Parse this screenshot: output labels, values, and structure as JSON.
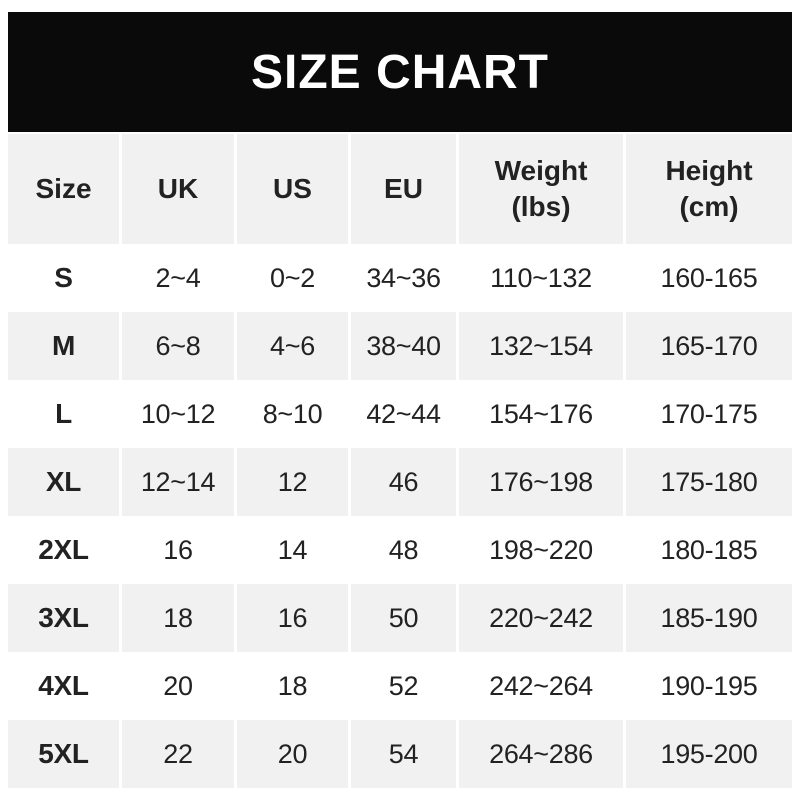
{
  "banner": {
    "title": "SIZE CHART",
    "bg_color": "#0a0a0a",
    "text_color": "#ffffff"
  },
  "table": {
    "shaded_row_color": "#f1f1f1",
    "text_color": "#222222",
    "headers": [
      {
        "line1": "Size"
      },
      {
        "line1": "UK"
      },
      {
        "line1": "US"
      },
      {
        "line1": "EU"
      },
      {
        "line1": "Weight",
        "line2": "(lbs)"
      },
      {
        "line1": "Height",
        "line2": "(cm)"
      }
    ]
  },
  "chart_data": {
    "type": "table",
    "title": "SIZE CHART",
    "columns": [
      "Size",
      "UK",
      "US",
      "EU",
      "Weight (lbs)",
      "Height (cm)"
    ],
    "rows": [
      [
        "S",
        "2~4",
        "0~2",
        "34~36",
        "110~132",
        "160-165"
      ],
      [
        "M",
        "6~8",
        "4~6",
        "38~40",
        "132~154",
        "165-170"
      ],
      [
        "L",
        "10~12",
        "8~10",
        "42~44",
        "154~176",
        "170-175"
      ],
      [
        "XL",
        "12~14",
        "12",
        "46",
        "176~198",
        "175-180"
      ],
      [
        "2XL",
        "16",
        "14",
        "48",
        "198~220",
        "180-185"
      ],
      [
        "3XL",
        "18",
        "16",
        "50",
        "220~242",
        "185-190"
      ],
      [
        "4XL",
        "20",
        "18",
        "52",
        "242~264",
        "190-195"
      ],
      [
        "5XL",
        "22",
        "20",
        "54",
        "264~286",
        "195-200"
      ]
    ],
    "layout": {
      "header_shaded": true,
      "alternating_shaded_rows": [
        "M",
        "XL",
        "3XL",
        "5XL"
      ]
    }
  }
}
